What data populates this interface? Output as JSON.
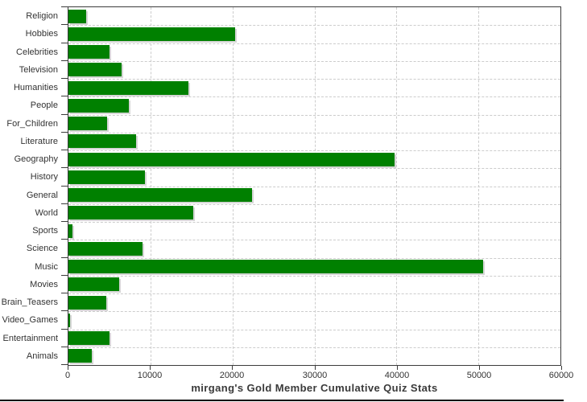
{
  "chart_data": {
    "type": "bar",
    "orientation": "horizontal",
    "title": "mirgang's Gold Member Cumulative Quiz Stats",
    "categories": [
      "Religion",
      "Hobbies",
      "Celebrities",
      "Television",
      "Humanities",
      "People",
      "For_Children",
      "Literature",
      "Geography",
      "History",
      "General",
      "World",
      "Sports",
      "Science",
      "Music",
      "Movies",
      "Brain_Teasers",
      "Video_Games",
      "Entertainment",
      "Animals"
    ],
    "values": [
      2200,
      20300,
      5000,
      6500,
      14600,
      7400,
      4700,
      8200,
      39800,
      9300,
      22400,
      15200,
      450,
      9000,
      50600,
      6200,
      4600,
      200,
      5000,
      2800
    ],
    "xlim": [
      0,
      60000
    ],
    "x_ticks": [
      0,
      10000,
      20000,
      30000,
      40000,
      50000,
      60000
    ],
    "x_tick_labels": [
      "0",
      "10000",
      "20000",
      "30000",
      "40000",
      "50000",
      "60000"
    ],
    "grid": "dashed",
    "legend": "none",
    "colors": {
      "bar": "#008000",
      "bar_shadow": "#d6d6d6",
      "gridline": "#cccccc",
      "axis": "#3c3c3c",
      "text": "#333333",
      "background": "#ffffff"
    }
  }
}
